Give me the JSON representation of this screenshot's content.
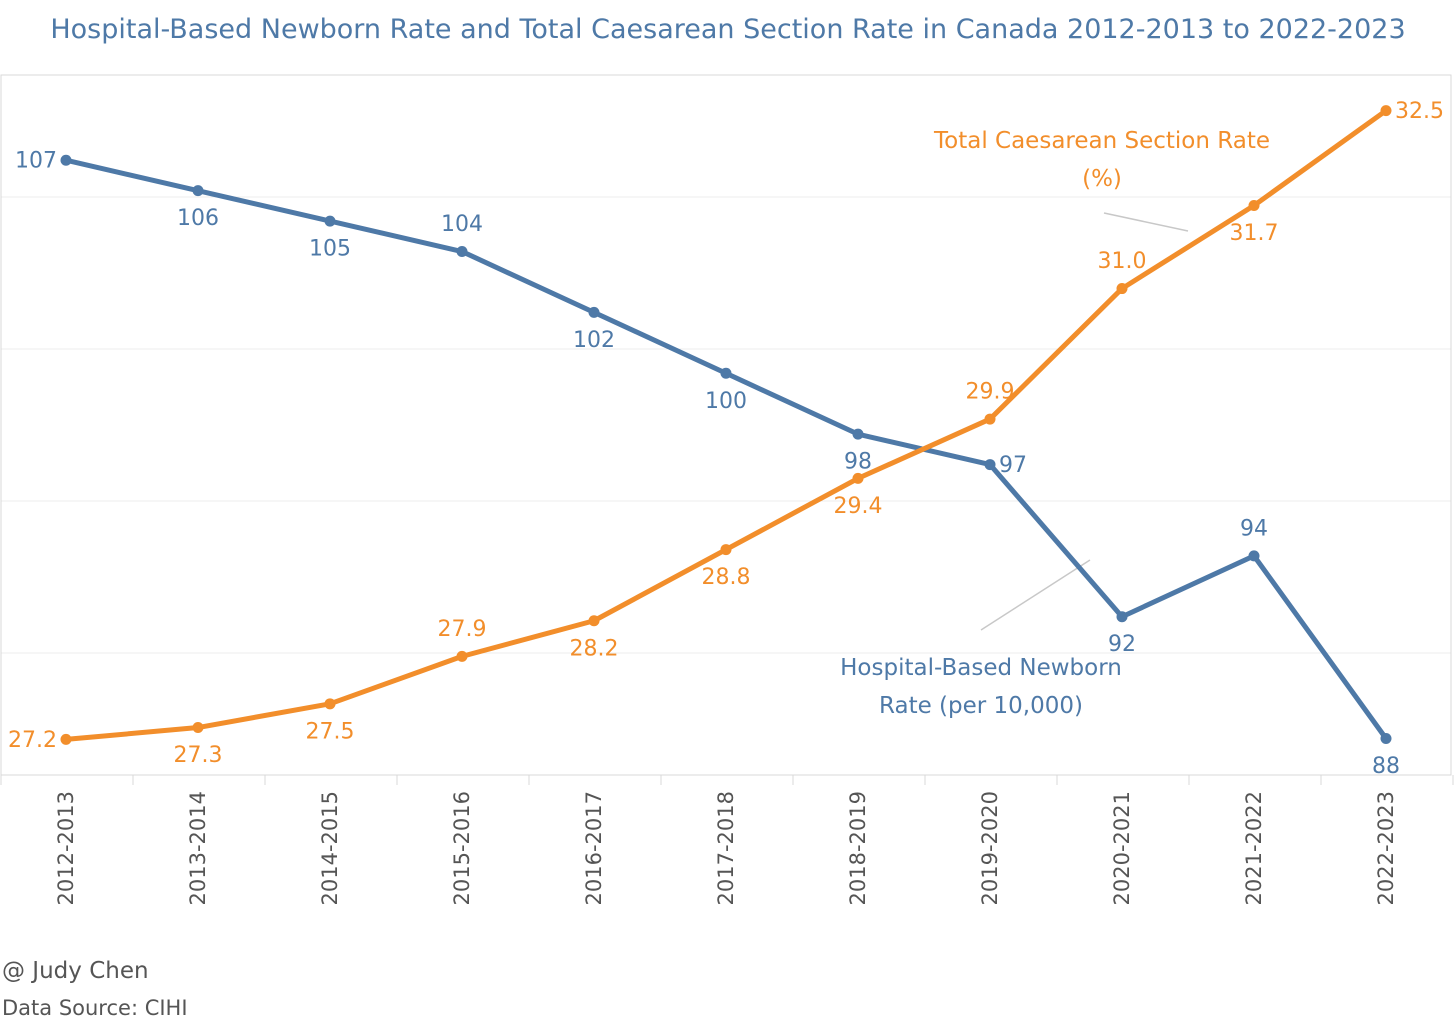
{
  "chart_data": {
    "type": "line",
    "title": "Hospital-Based Newborn Rate and Total Caesarean Section Rate in Canada 2012-2013 to 2022-2023",
    "categories": [
      "2012-2013",
      "2013-2014",
      "2014-2015",
      "2015-2016",
      "2016-2017",
      "2017-2018",
      "2018-2019",
      "2019-2020",
      "2020-2021",
      "2021-2022",
      "2022-2023"
    ],
    "series": [
      {
        "name": "Hospital-Based Newborn Rate (per 10,000)",
        "name_lines": [
          "Hospital-Based Newborn",
          "Rate (per 10,000)"
        ],
        "color": "#4e79a7",
        "values": [
          107,
          106,
          105,
          104,
          102,
          100,
          98,
          97,
          92,
          94,
          88
        ],
        "labels": [
          "107",
          "106",
          "105",
          "104",
          "102",
          "100",
          "98",
          "97",
          "92",
          "94",
          "88"
        ],
        "ylim": [
          86.8,
          109.8
        ]
      },
      {
        "name": "Total Caesarean Section Rate (%)",
        "name_lines": [
          "Total Caesarean Section Rate",
          "(%)"
        ],
        "color": "#f28e2b",
        "values": [
          27.2,
          27.3,
          27.5,
          27.9,
          28.2,
          28.8,
          29.4,
          29.9,
          31.0,
          31.7,
          32.5
        ],
        "labels": [
          "27.2",
          "27.3",
          "27.5",
          "27.9",
          "28.2",
          "28.8",
          "29.4",
          "29.9",
          "31.0",
          "31.7",
          "32.5"
        ],
        "ylim": [
          26.9,
          32.8
        ]
      }
    ],
    "xlabel": "",
    "ylabel": "",
    "grid": true
  },
  "credits": {
    "author": "@ Judy Chen",
    "source": "Data Source: CIHI"
  }
}
